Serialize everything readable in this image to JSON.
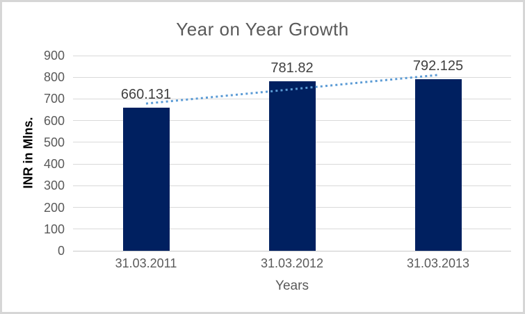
{
  "window": {
    "background": "#FFFFFF",
    "frame_border": "#D6D6D6"
  },
  "chart_data": {
    "type": "bar",
    "title": "Year on Year Growth",
    "xlabel": "Years",
    "ylabel": "INR in Mlns.",
    "categories": [
      "31.03.2011",
      "31.03.2012",
      "31.03.2013"
    ],
    "values": [
      660.131,
      781.82,
      792.125
    ],
    "data_labels": [
      "660.131",
      "781.82",
      "792.125"
    ],
    "ylim": [
      0,
      900
    ],
    "ytick_step": 100,
    "grid": "horizontal",
    "legend": "none",
    "trendline": {
      "type": "linear",
      "style": "dotted",
      "start_value": 678.7,
      "end_value": 810.7
    },
    "colors": {
      "bar": "#002060",
      "trendline": "#5B9BD5",
      "gridline": "#D9D9D9",
      "baseline": "#C9C9C9",
      "axis_text": "#595959",
      "data_label": "#404040",
      "title": "#595959"
    }
  }
}
